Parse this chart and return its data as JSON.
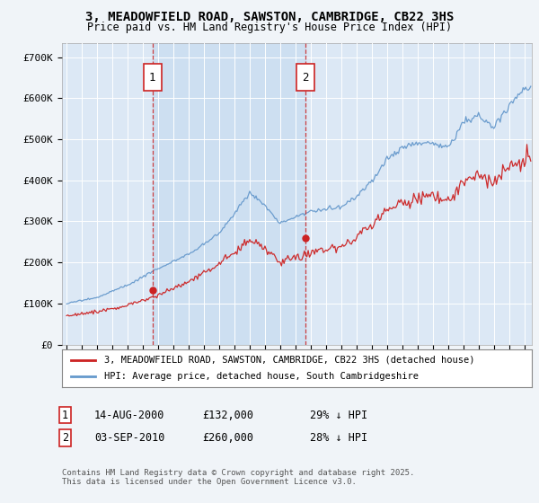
{
  "title": "3, MEADOWFIELD ROAD, SAWSTON, CAMBRIDGE, CB22 3HS",
  "subtitle": "Price paid vs. HM Land Registry's House Price Index (HPI)",
  "ylabel_ticks": [
    "£0",
    "£100K",
    "£200K",
    "£300K",
    "£400K",
    "£500K",
    "£600K",
    "£700K"
  ],
  "ytick_vals": [
    0,
    100000,
    200000,
    300000,
    400000,
    500000,
    600000,
    700000
  ],
  "ylim": [
    0,
    735000
  ],
  "xlim_start": 1994.7,
  "xlim_end": 2025.5,
  "fig_bg_color": "#f0f4f8",
  "plot_bg_color": "#dce8f5",
  "shade_color": "#c8dcf0",
  "grid_color": "#ffffff",
  "red_color": "#cc2222",
  "blue_color": "#6699cc",
  "marker1_date": "14-AUG-2000",
  "marker1_price": "£132,000",
  "marker1_hpi": "29% ↓ HPI",
  "marker1_year": 2000.62,
  "marker1_price_val": 132000,
  "marker2_date": "03-SEP-2010",
  "marker2_price": "£260,000",
  "marker2_hpi": "28% ↓ HPI",
  "marker2_year": 2010.67,
  "marker2_price_val": 260000,
  "legend_red_label": "3, MEADOWFIELD ROAD, SAWSTON, CAMBRIDGE, CB22 3HS (detached house)",
  "legend_blue_label": "HPI: Average price, detached house, South Cambridgeshire",
  "footnote": "Contains HM Land Registry data © Crown copyright and database right 2025.\nThis data is licensed under the Open Government Licence v3.0."
}
